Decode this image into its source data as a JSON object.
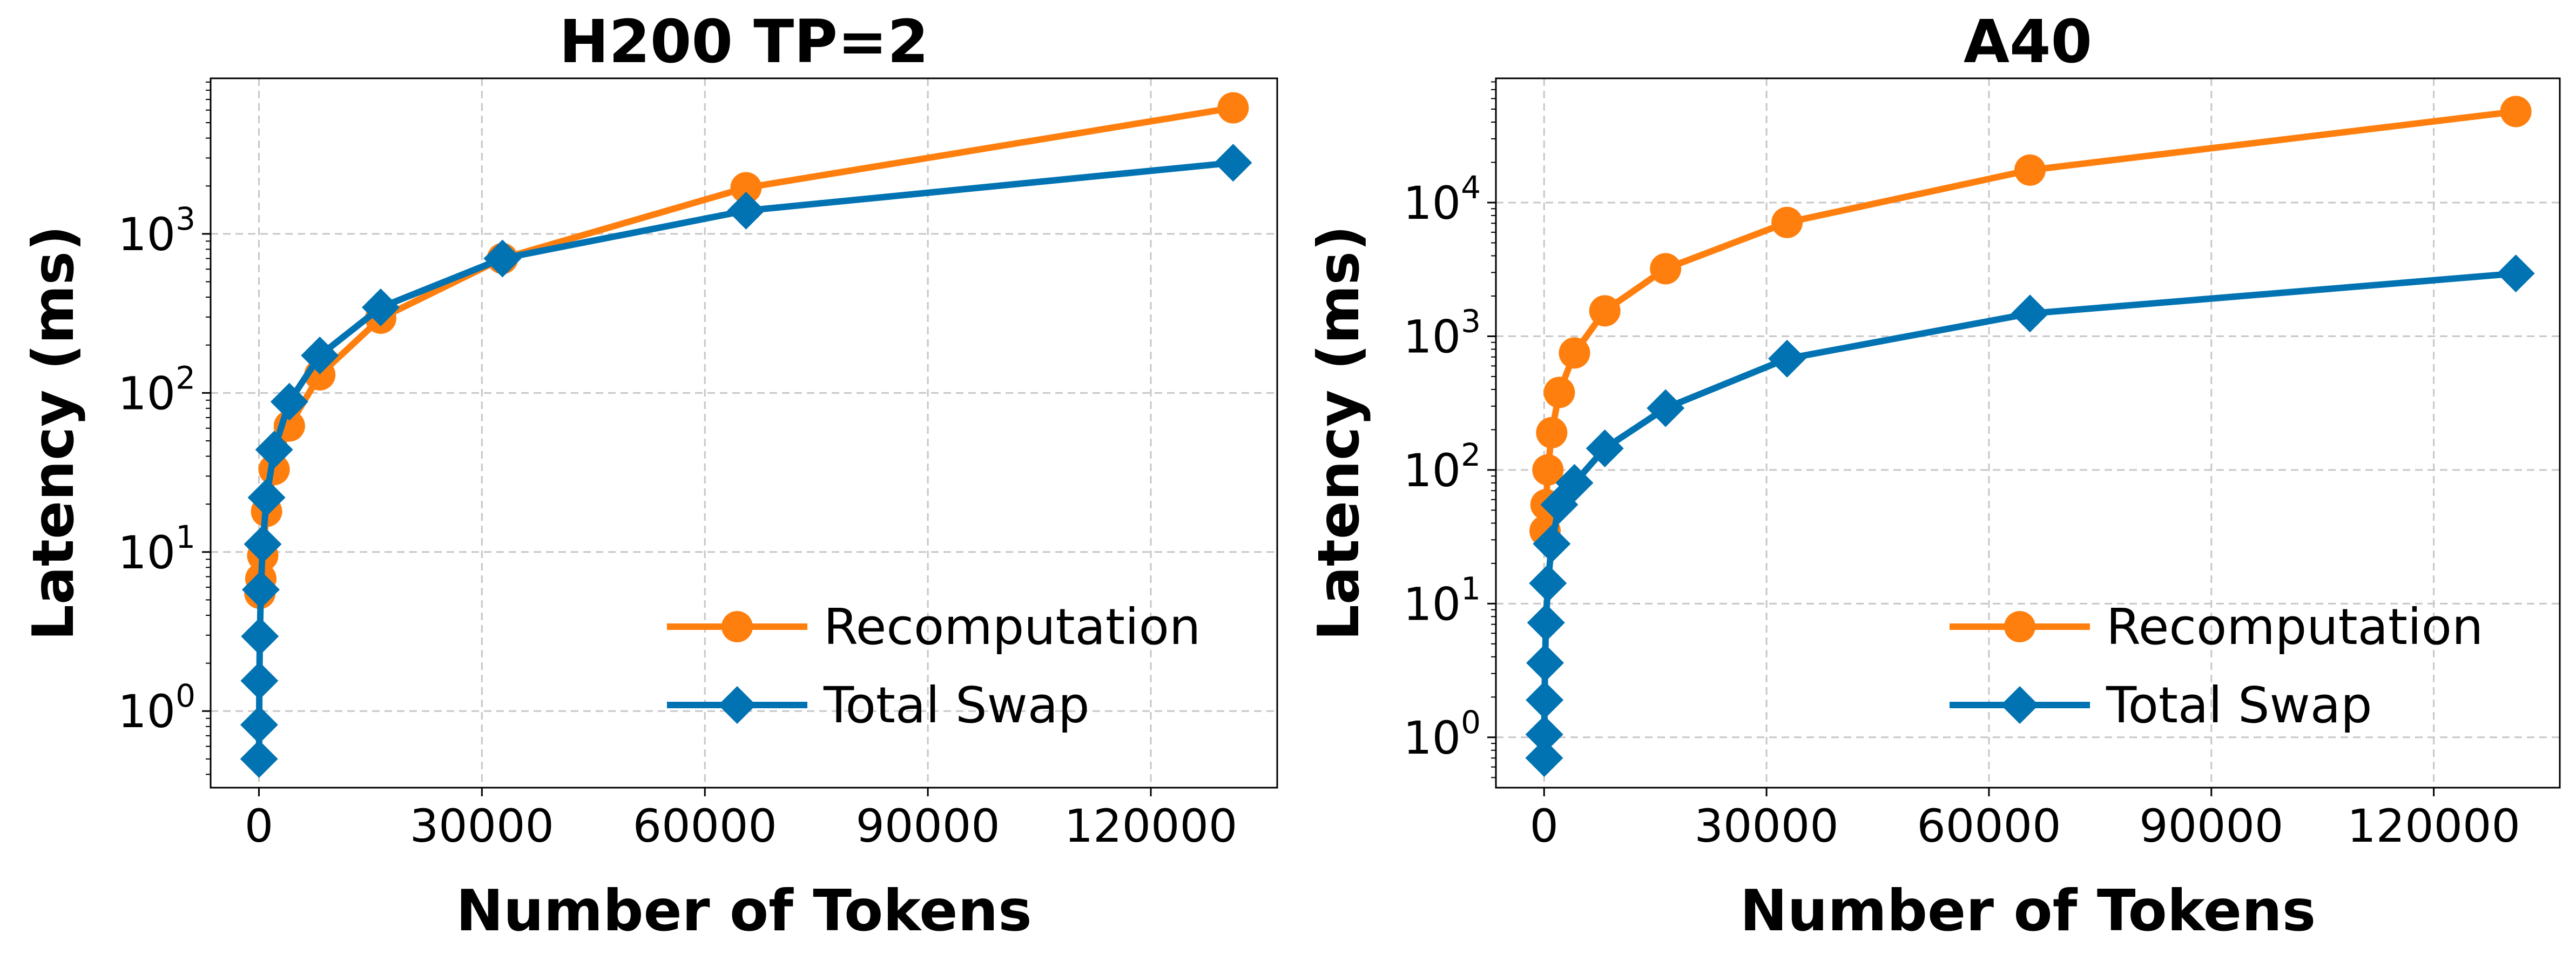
{
  "chart_data": [
    {
      "type": "line",
      "title": "H200 TP=2",
      "xlabel": "Number of Tokens",
      "ylabel": "Latency (ms)",
      "x_scale": "linear",
      "y_scale": "log",
      "xlim": [
        -6500,
        137000
      ],
      "ylim": [
        0.33,
        9500
      ],
      "x_ticks": [
        0,
        30000,
        60000,
        90000,
        120000
      ],
      "x_tick_labels": [
        "0",
        "30000",
        "60000",
        "90000",
        "120000"
      ],
      "y_ticks": [
        1,
        10,
        100,
        1000
      ],
      "y_tick_labels": [
        {
          "base": "10",
          "exp": "0"
        },
        {
          "base": "10",
          "exp": "1"
        },
        {
          "base": "10",
          "exp": "2"
        },
        {
          "base": "10",
          "exp": "3"
        }
      ],
      "grid": true,
      "legend_position": "lower-right",
      "series": [
        {
          "name": "Recomputation",
          "color": "#ff7f0e",
          "marker": "circle",
          "x": [
            128,
            256,
            512,
            1024,
            2048,
            4096,
            8192,
            16384,
            32768,
            65536,
            131072
          ],
          "y": [
            5.5,
            6.8,
            9.5,
            18,
            33,
            62,
            130,
            295,
            700,
            1950,
            6200
          ]
        },
        {
          "name": "Total Swap",
          "color": "#0173b2",
          "marker": "diamond",
          "x": [
            16,
            32,
            64,
            128,
            256,
            512,
            1024,
            2048,
            4096,
            8192,
            16384,
            32768,
            65536,
            131072
          ],
          "y": [
            0.5,
            0.82,
            1.55,
            2.95,
            5.8,
            11.2,
            22,
            44,
            88,
            172,
            345,
            700,
            1400,
            2800
          ]
        }
      ]
    },
    {
      "type": "line",
      "title": "A40",
      "xlabel": "Number of Tokens",
      "ylabel": "Latency (ms)",
      "x_scale": "linear",
      "y_scale": "log",
      "xlim": [
        -6500,
        137000
      ],
      "ylim": [
        0.42,
        85000
      ],
      "x_ticks": [
        0,
        30000,
        60000,
        90000,
        120000
      ],
      "x_tick_labels": [
        "0",
        "30000",
        "60000",
        "90000",
        "120000"
      ],
      "y_ticks": [
        1,
        10,
        100,
        1000,
        10000
      ],
      "y_tick_labels": [
        {
          "base": "10",
          "exp": "0"
        },
        {
          "base": "10",
          "exp": "1"
        },
        {
          "base": "10",
          "exp": "2"
        },
        {
          "base": "10",
          "exp": "3"
        },
        {
          "base": "10",
          "exp": "4"
        }
      ],
      "grid": true,
      "legend_position": "lower-right",
      "series": [
        {
          "name": "Recomputation",
          "color": "#ff7f0e",
          "marker": "circle",
          "x": [
            128,
            256,
            512,
            1024,
            2048,
            4096,
            8192,
            16384,
            32768,
            65536,
            131072
          ],
          "y": [
            35,
            55,
            100,
            190,
            380,
            750,
            1550,
            3200,
            7100,
            17500,
            48000
          ]
        },
        {
          "name": "Total Swap",
          "color": "#0173b2",
          "marker": "diamond",
          "x": [
            16,
            32,
            64,
            128,
            256,
            512,
            1024,
            2048,
            4096,
            8192,
            16384,
            32768,
            65536,
            131072
          ],
          "y": [
            0.7,
            1.05,
            1.9,
            3.6,
            7.2,
            14.2,
            28,
            55,
            80,
            145,
            290,
            680,
            1480,
            2950
          ]
        }
      ]
    }
  ]
}
